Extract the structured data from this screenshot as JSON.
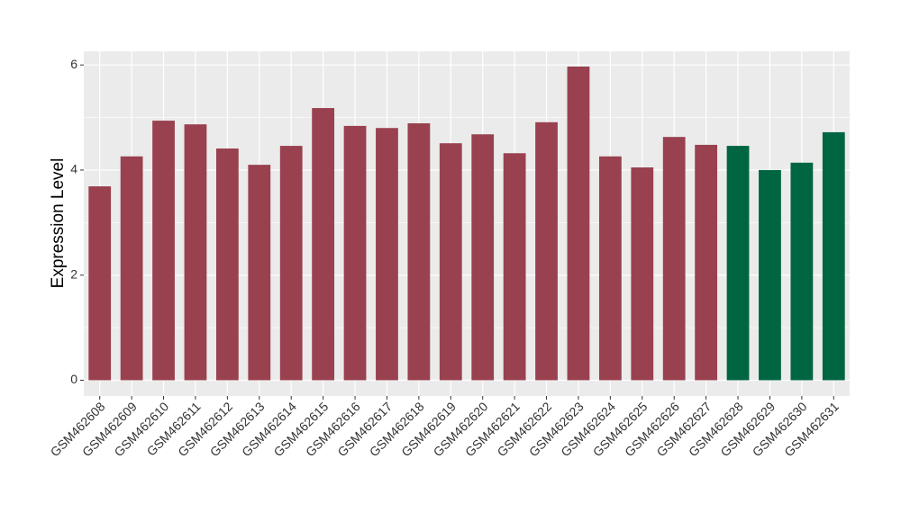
{
  "chart_data": {
    "type": "bar",
    "y_label": "Expression Level",
    "categories": [
      "GSM462608",
      "GSM462609",
      "GSM462610",
      "GSM462611",
      "GSM462612",
      "GSM462613",
      "GSM462614",
      "GSM462615",
      "GSM462616",
      "GSM462617",
      "GSM462618",
      "GSM462619",
      "GSM462620",
      "GSM462621",
      "GSM462622",
      "GSM462623",
      "GSM462624",
      "GSM462625",
      "GSM462626",
      "GSM462627",
      "GSM462628",
      "GSM462629",
      "GSM462630",
      "GSM462631"
    ],
    "values": [
      3.69,
      4.26,
      4.94,
      4.87,
      4.41,
      4.1,
      4.46,
      5.18,
      4.84,
      4.8,
      4.89,
      4.51,
      4.68,
      4.32,
      4.91,
      5.97,
      4.26,
      4.05,
      4.63,
      4.48,
      4.46,
      4.0,
      4.14,
      4.72
    ],
    "colors": [
      "#99414f",
      "#99414f",
      "#99414f",
      "#99414f",
      "#99414f",
      "#99414f",
      "#99414f",
      "#99414f",
      "#99414f",
      "#99414f",
      "#99414f",
      "#99414f",
      "#99414f",
      "#99414f",
      "#99414f",
      "#99414f",
      "#99414f",
      "#99414f",
      "#99414f",
      "#99414f",
      "#006641",
      "#006641",
      "#006641",
      "#006641"
    ],
    "ylim": [
      -0.3,
      6.26
    ],
    "yticks": [
      0,
      2,
      4,
      6
    ],
    "grid": true
  }
}
